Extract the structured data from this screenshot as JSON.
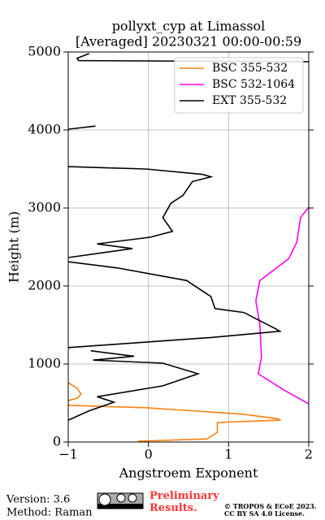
{
  "chart_data": {
    "type": "line",
    "title": "pollyxt_cyp at Limassol",
    "subtitle": "[Averaged] 20230321 00:00-00:59",
    "x_label": "Angstroem Exponent",
    "y_label": "Height (m)",
    "xlim": [
      -1,
      2
    ],
    "ylim": [
      0,
      5000
    ],
    "xticks": [
      {
        "value": -1,
        "label": "−1"
      },
      0,
      1,
      2
    ],
    "yticks": [
      0,
      1000,
      2000,
      3000,
      4000,
      5000
    ],
    "grid": true,
    "legend": "upper right",
    "series": [
      {
        "name": "BSC 355-532",
        "color": "#ff7f0e",
        "x": [
          -1,
          -0.89,
          -0.84,
          -0.89,
          -1,
          null,
          -1,
          -0.03,
          1.19,
          1.6,
          1.65,
          0.86,
          0.86,
          0.73,
          -0.13
        ],
        "y": [
          760,
          690,
          615,
          560,
          530,
          null,
          470,
          440,
          355,
          300,
          280,
          250,
          125,
          40,
          10
        ]
      },
      {
        "name": "BSC 532-1064",
        "color": "#ff00ff",
        "x": [
          2,
          1.9,
          1.85,
          1.75,
          1.39,
          1.34,
          1.39,
          1.41,
          1.37,
          1.7,
          2
        ],
        "y": [
          3010,
          2880,
          2560,
          2350,
          2070,
          1810,
          1500,
          1080,
          875,
          660,
          490
        ]
      },
      {
        "name": "EXT 355-532",
        "color": "#000000",
        "x": [
          -0.74,
          -0.89,
          -0.87,
          2,
          null,
          -0.66,
          -1,
          null,
          -1,
          -0.03,
          0.68,
          0.78,
          0.55,
          0.43,
          0.28,
          0.18,
          0.3,
          0.02,
          -0.64,
          -0.2,
          -1,
          null,
          -1,
          -0.38,
          0.48,
          0.55,
          0.78,
          0.83,
          1.19,
          1.59,
          1.64,
          0.78,
          -1,
          null,
          -0.72,
          -0.18,
          -0.69,
          0.18,
          0.62,
          0.18,
          -0.64,
          -0.43,
          -0.74,
          -1
        ],
        "y": [
          4980,
          4920,
          4890,
          4875,
          null,
          4050,
          4010,
          null,
          3530,
          3500,
          3430,
          3400,
          3340,
          3160,
          3060,
          2875,
          2700,
          2625,
          2540,
          2480,
          2365,
          null,
          2310,
          2230,
          2070,
          2020,
          1865,
          1710,
          1660,
          1450,
          1420,
          1340,
          1210,
          null,
          1170,
          1100,
          1050,
          1010,
          875,
          720,
          580,
          510,
          400,
          280
        ]
      }
    ]
  },
  "footer": {
    "version": "Version: 3.6",
    "method": "Method: Raman",
    "status": "Preliminary Results.",
    "copyright": "© TROPOS & ECoE 2023.",
    "license": "CC BY SA 4.0 License."
  }
}
